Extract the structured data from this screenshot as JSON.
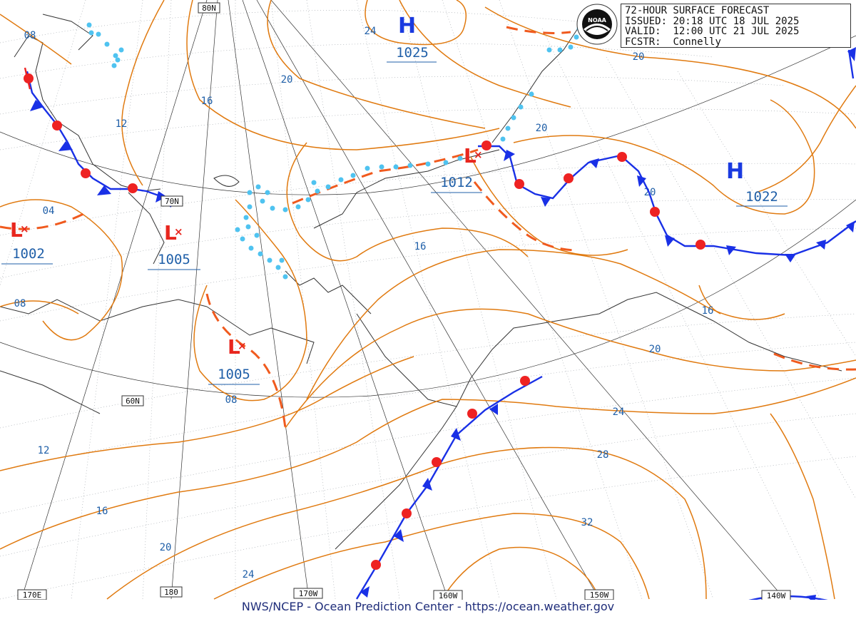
{
  "title": "72-HOUR SURFACE FORECAST",
  "header": {
    "issued_label": "ISSUED:",
    "issued_value": "20:18 UTC 18 JUL 2025",
    "valid_label": "VALID:",
    "valid_value": "12:00 UTC 21 JUL 2025",
    "fcstr_label": "FCSTR:",
    "fcstr_value": "Connelly"
  },
  "logo": {
    "icon": "noaa-logo",
    "text": "NOAA"
  },
  "footer": {
    "credit": "NWS/NCEP - Ocean Prediction Center - https://ocean.weather.gov"
  },
  "longitude_labels": [
    "170E",
    "180",
    "170W",
    "160W",
    "150W",
    "140W"
  ],
  "latitude_labels": [
    "80N",
    "70N",
    "60N"
  ],
  "pressure_systems": {
    "high_1": {
      "type": "H",
      "pressure": "1025"
    },
    "high_2": {
      "type": "H",
      "pressure": "1022"
    },
    "low_1": {
      "type": "L",
      "pressure": "1002"
    },
    "low_2": {
      "type": "L",
      "pressure": "1005"
    },
    "low_3": {
      "type": "L",
      "pressure": "1005"
    },
    "low_4": {
      "type": "L",
      "pressure": "1012"
    }
  },
  "isobar_labels": [
    "08",
    "24",
    "20",
    "16",
    "12",
    "04",
    "08",
    "16",
    "20",
    "20",
    "16",
    "20",
    "24",
    "28",
    "32",
    "12",
    "16",
    "20",
    "24",
    "08"
  ],
  "colors": {
    "isobar": "#e07a10",
    "trough": "#f05a1e",
    "cold_front": "#1930e6",
    "warm_front": "#ee2222",
    "moisture": "#4fc3f0",
    "label_blue": "#1f5fa8",
    "high": "#1a3ae0",
    "low": "#e8261e"
  }
}
